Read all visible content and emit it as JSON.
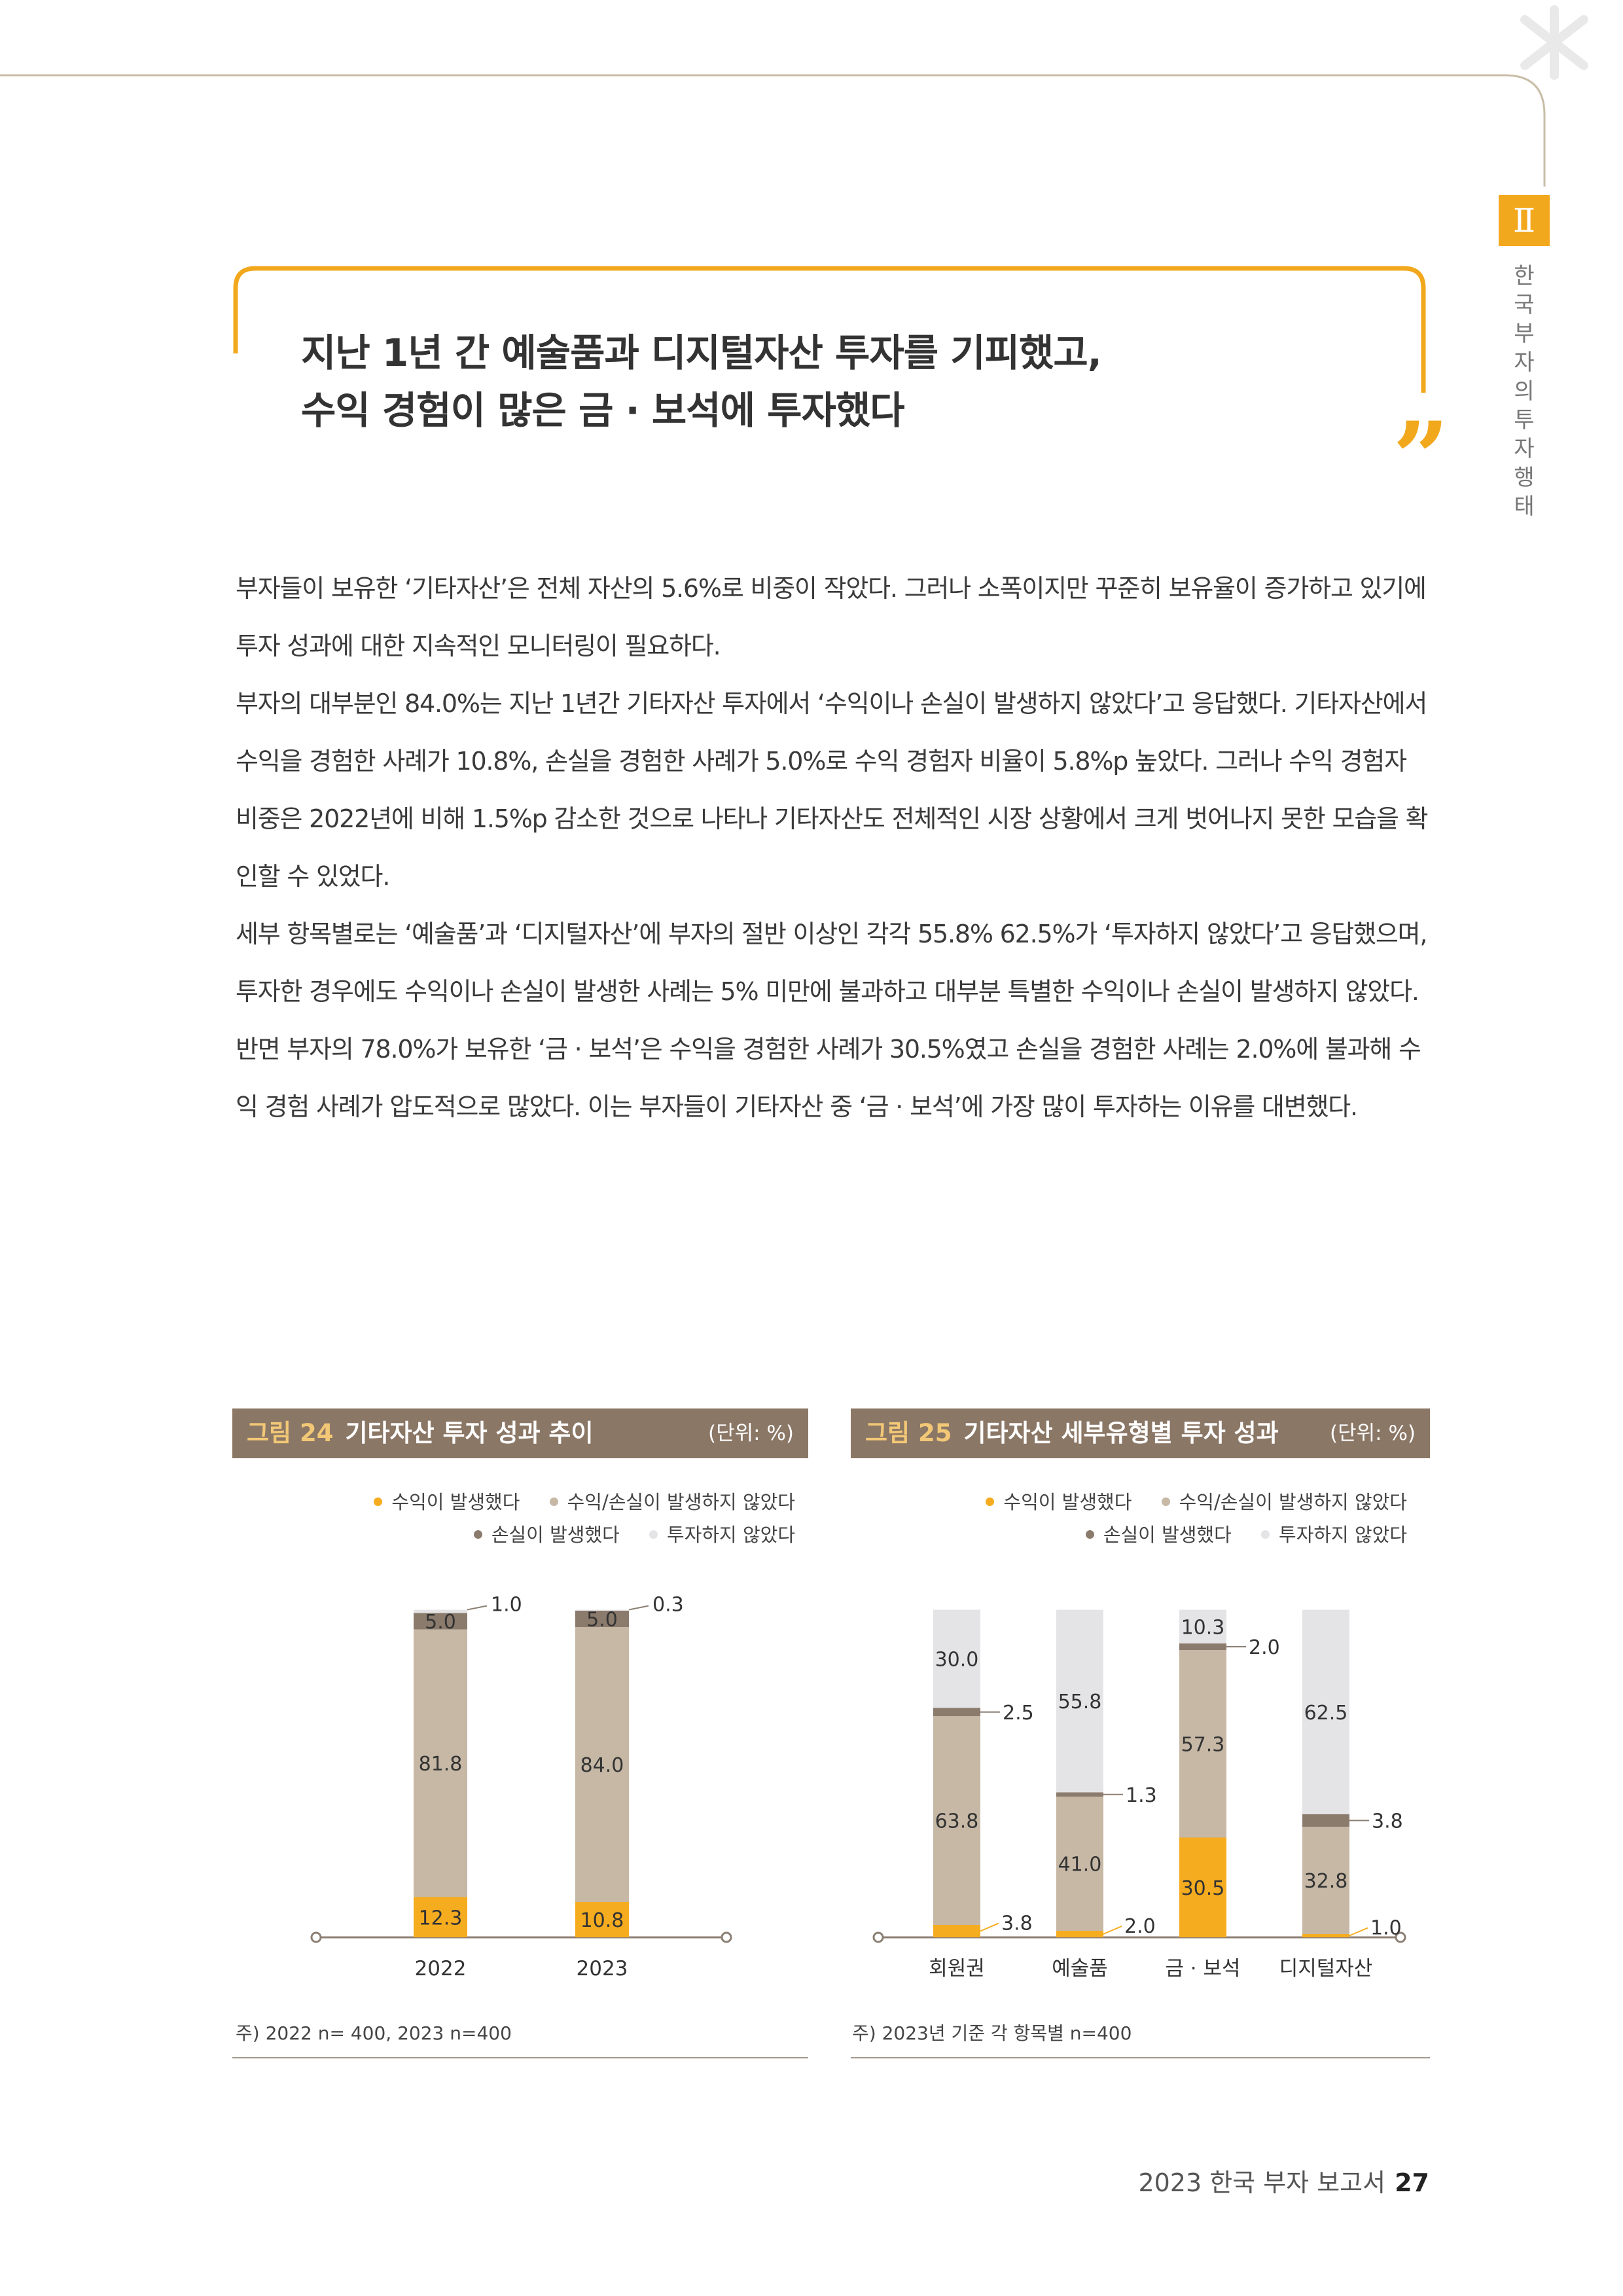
{
  "chapter": {
    "badge": "Ⅱ",
    "side_title": [
      "한",
      "국",
      "부",
      "자",
      "의",
      "투",
      "자",
      "행",
      "태"
    ]
  },
  "headline": {
    "line1": "지난 1년 간 예술품과 디지털자산 투자를 기피했고,",
    "line2": "수익 경험이 많은 금 · 보석에 투자했다",
    "quote_mark": "”"
  },
  "body": {
    "p1": "부자들이 보유한 ‘기타자산’은 전체 자산의 5.6%로 비중이 작았다. 그러나 소폭이지만 꾸준히 보유율이 증가하고 있기에 투자 성과에 대한 지속적인 모니터링이 필요하다.",
    "p2": "부자의 대부분인 84.0%는 지난 1년간 기타자산 투자에서 ‘수익이나 손실이 발생하지 않았다’고 응답했다. 기타자산에서 수익을 경험한 사례가 10.8%, 손실을 경험한 사례가 5.0%로 수익 경험자 비율이 5.8%p 높았다. 그러나 수익 경험자 비중은 2022년에 비해 1.5%p 감소한 것으로 나타나 기타자산도 전체적인 시장 상황에서 크게 벗어나지 못한 모습을 확인할 수 있었다.",
    "p3": "세부 항목별로는 ‘예술품’과 ‘디지털자산’에 부자의 절반 이상인 각각 55.8% 62.5%가 ‘투자하지 않았다’고 응답했으며, 투자한 경우에도 수익이나 손실이 발생한 사례는 5% 미만에 불과하고 대부분 특별한 수익이나 손실이 발생하지 않았다.",
    "p4": "반면 부자의 78.0%가 보유한 ‘금 · 보석’은 수익을 경험한 사례가 30.5%였고 손실을 경험한 사례는 2.0%에 불과해 수익 경험 사례가 압도적으로 많았다. 이는 부자들이 기타자산 중 ‘금 · 보석’에 가장 많이 투자하는 이유를 대변했다."
  },
  "legend": {
    "profit": "수익이 발생했다",
    "neutral": "수익/손실이 발생하지 않았다",
    "loss": "손실이 발생했다",
    "none": "투자하지 않았다"
  },
  "colors": {
    "profit": "#f6ac1f",
    "neutral": "#c6b8a5",
    "loss": "#8b7b6d",
    "none": "#e4e4e6",
    "accent": "#f2a81d",
    "header": "#8b7766"
  },
  "figure24": {
    "label": "그림 24",
    "title": "기타자산 투자 성과 추이",
    "unit": "(단위: %)",
    "note": "주) 2022 n= 400, 2023 n=400"
  },
  "figure25": {
    "label": "그림 25",
    "title": "기타자산 세부유형별 투자 성과",
    "unit": "(단위: %)",
    "note": "주) 2023년 기준 각 항목별 n=400"
  },
  "chart_data": [
    {
      "type": "bar",
      "stacked": true,
      "title": "기타자산 투자 성과 추이",
      "unit": "%",
      "categories": [
        "2022",
        "2023"
      ],
      "series": [
        {
          "name": "수익이 발생했다",
          "values": [
            12.3,
            10.8
          ]
        },
        {
          "name": "수익/손실이 발생하지 않았다",
          "values": [
            81.8,
            84.0
          ]
        },
        {
          "name": "손실이 발생했다",
          "values": [
            5.0,
            5.0
          ]
        },
        {
          "name": "투자하지 않았다",
          "values": [
            1.0,
            0.3
          ]
        }
      ],
      "ylim": [
        0,
        100
      ]
    },
    {
      "type": "bar",
      "stacked": true,
      "title": "기타자산 세부유형별 투자 성과",
      "unit": "%",
      "categories": [
        "회원권",
        "예술품",
        "금 · 보석",
        "디지털자산"
      ],
      "series": [
        {
          "name": "수익이 발생했다",
          "values": [
            3.8,
            2.0,
            30.5,
            1.0
          ]
        },
        {
          "name": "수익/손실이 발생하지 않았다",
          "values": [
            63.8,
            41.0,
            57.3,
            32.8
          ]
        },
        {
          "name": "손실이 발생했다",
          "values": [
            2.5,
            1.3,
            2.0,
            3.8
          ]
        },
        {
          "name": "투자하지 않았다",
          "values": [
            30.0,
            55.8,
            10.3,
            62.5
          ]
        }
      ],
      "ylim": [
        0,
        100
      ]
    }
  ],
  "footer": {
    "report": "2023 한국 부자 보고서",
    "page": "27"
  }
}
